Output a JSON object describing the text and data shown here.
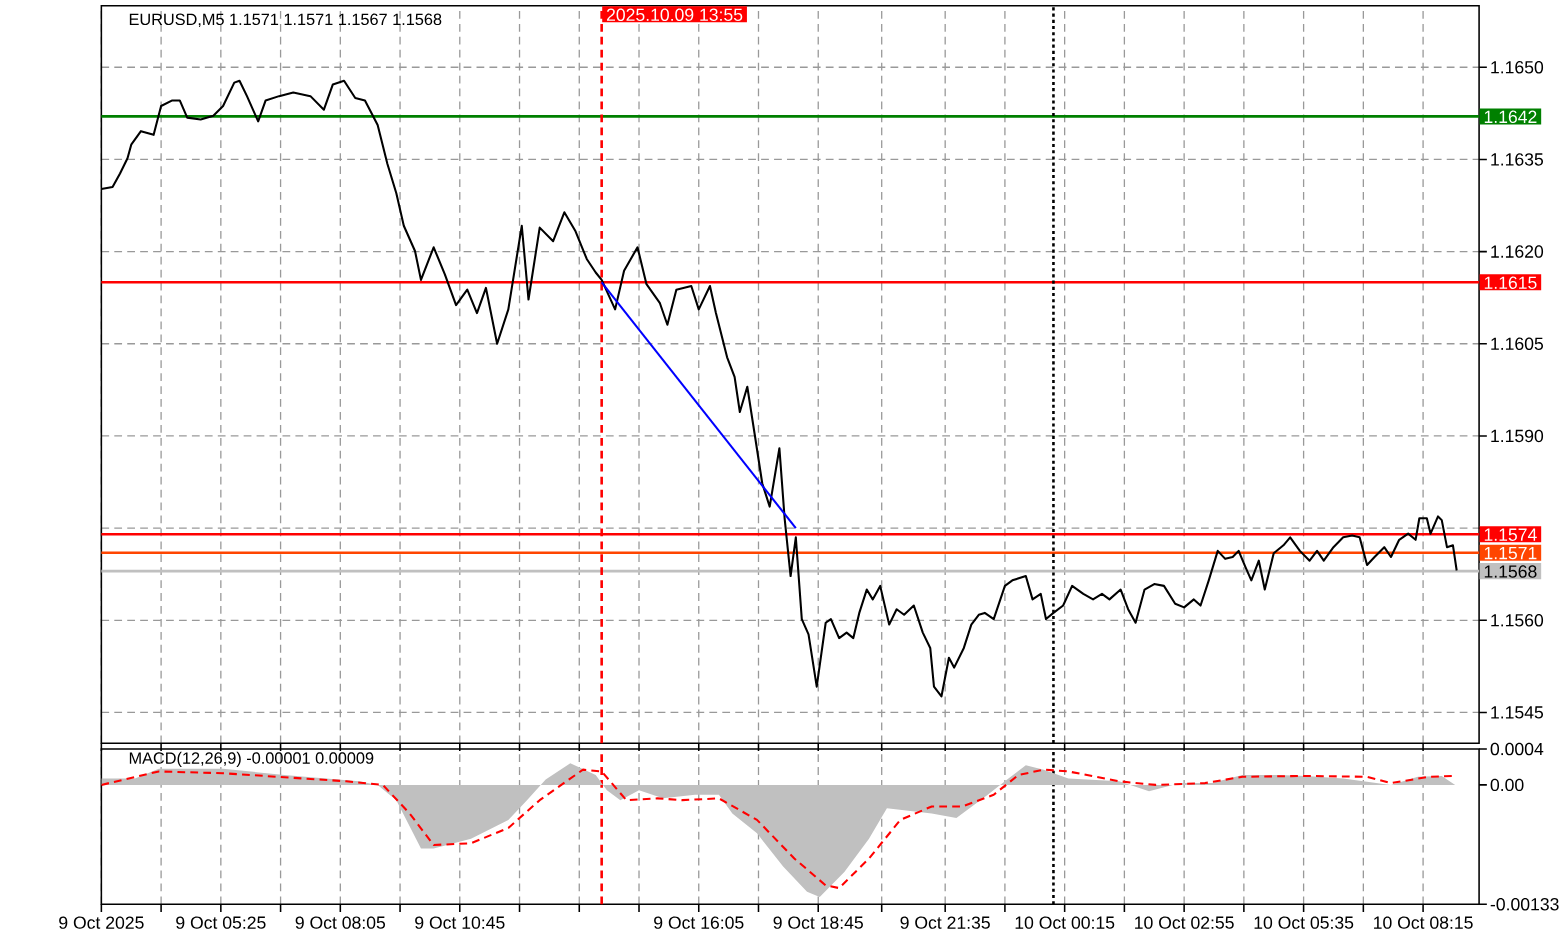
{
  "chart_data": [
    {
      "type": "line",
      "title": "EURUSD,M5 1.1571 1.1571 1.1567 1.1568",
      "xlim": [
        "2025-10-09T02:45",
        "2025-10-10T09:30"
      ],
      "ylim": [
        1.154,
        1.166
      ],
      "tick_labels": "y",
      "grid": true,
      "xticks": [
        {
          "value": "2025-10-09T02:45",
          "label": null
        },
        {
          "value": "2025-10-09T04:05",
          "label": null
        },
        {
          "value": "2025-10-09T05:25",
          "label": null
        },
        {
          "value": "2025-10-09T06:45",
          "label": null
        },
        {
          "value": "2025-10-09T08:05",
          "label": null
        },
        {
          "value": "2025-10-09T09:25",
          "label": null
        },
        {
          "value": "2025-10-09T10:45",
          "label": null
        },
        {
          "value": "2025-10-09T12:05",
          "label": null
        },
        {
          "value": "2025-10-09T13:25",
          "label": null
        },
        {
          "value": "2025-10-09T14:45",
          "label": null
        },
        {
          "value": "2025-10-09T16:05",
          "label": null
        },
        {
          "value": "2025-10-09T17:25",
          "label": null
        },
        {
          "value": "2025-10-09T18:45",
          "label": null
        },
        {
          "value": "2025-10-09T20:10",
          "label": null
        },
        {
          "value": "2025-10-09T21:35",
          "label": null
        },
        {
          "value": "2025-10-09T22:55",
          "label": null
        },
        {
          "value": "2025-10-10T00:15",
          "label": null
        },
        {
          "value": "2025-10-10T01:35",
          "label": null
        },
        {
          "value": "2025-10-10T02:55",
          "label": null
        },
        {
          "value": "2025-10-10T04:15",
          "label": null
        },
        {
          "value": "2025-10-10T05:35",
          "label": null
        },
        {
          "value": "2025-10-10T06:55",
          "label": null
        },
        {
          "value": "2025-10-10T08:15",
          "label": null
        }
      ],
      "yticks": [
        {
          "value": 1.1545,
          "label": "1.1545"
        },
        {
          "value": 1.156,
          "label": "1.1560"
        },
        {
          "value": 1.1575,
          "label": null
        },
        {
          "value": 1.159,
          "label": "1.1590"
        },
        {
          "value": 1.1605,
          "label": "1.1605"
        },
        {
          "value": 1.162,
          "label": "1.1620"
        },
        {
          "value": 1.1635,
          "label": "1.1635"
        },
        {
          "value": 1.165,
          "label": "1.1650"
        }
      ],
      "series": [
        {
          "color": "#000000",
          "x": [
            "2025-10-09T02:45",
            "2025-10-09T03:00",
            "2025-10-09T03:10",
            "2025-10-09T03:20",
            "2025-10-09T03:25",
            "2025-10-09T03:38",
            "2025-10-09T03:55",
            "2025-10-09T04:05",
            "2025-10-09T04:20",
            "2025-10-09T04:30",
            "2025-10-09T04:40",
            "2025-10-09T04:58",
            "2025-10-09T05:15",
            "2025-10-09T05:28",
            "2025-10-09T05:43",
            "2025-10-09T05:50",
            "2025-10-09T06:00",
            "2025-10-09T06:15",
            "2025-10-09T06:25",
            "2025-10-09T06:43",
            "2025-10-09T07:02",
            "2025-10-09T07:25",
            "2025-10-09T07:43",
            "2025-10-09T07:55",
            "2025-10-09T08:10",
            "2025-10-09T08:25",
            "2025-10-09T08:38",
            "2025-10-09T08:55",
            "2025-10-09T09:08",
            "2025-10-09T09:20",
            "2025-10-09T09:30",
            "2025-10-09T09:45",
            "2025-10-09T09:53",
            "2025-10-09T10:10",
            "2025-10-09T10:25",
            "2025-10-09T10:40",
            "2025-10-09T10:55",
            "2025-10-09T11:08",
            "2025-10-09T11:20",
            "2025-10-09T11:35",
            "2025-10-09T11:50",
            "2025-10-09T12:08",
            "2025-10-09T12:17",
            "2025-10-09T12:32",
            "2025-10-09T12:50",
            "2025-10-09T13:05",
            "2025-10-09T13:20",
            "2025-10-09T13:35",
            "2025-10-09T13:47",
            "2025-10-09T13:55",
            "2025-10-09T14:13",
            "2025-10-09T14:25",
            "2025-10-09T14:43",
            "2025-10-09T14:55",
            "2025-10-09T15:13",
            "2025-10-09T15:23",
            "2025-10-09T15:35",
            "2025-10-09T15:55",
            "2025-10-09T16:05",
            "2025-10-09T16:20",
            "2025-10-09T16:28",
            "2025-10-09T16:43",
            "2025-10-09T16:53",
            "2025-10-09T17:00",
            "2025-10-09T17:10",
            "2025-10-09T17:20",
            "2025-10-09T17:30",
            "2025-10-09T17:40",
            "2025-10-09T17:53",
            "2025-10-09T18:00",
            "2025-10-09T18:08",
            "2025-10-09T18:15",
            "2025-10-09T18:23",
            "2025-10-09T18:32",
            "2025-10-09T18:43",
            "2025-10-09T18:55",
            "2025-10-09T19:02",
            "2025-10-09T19:13",
            "2025-10-09T19:23",
            "2025-10-09T19:32",
            "2025-10-09T19:40",
            "2025-10-09T19:50",
            "2025-10-09T19:58",
            "2025-10-09T20:08",
            "2025-10-09T20:20",
            "2025-10-09T20:30",
            "2025-10-09T20:40",
            "2025-10-09T20:53",
            "2025-10-09T21:05",
            "2025-10-09T21:15",
            "2025-10-09T21:20",
            "2025-10-09T21:30",
            "2025-10-09T21:40",
            "2025-10-09T21:47",
            "2025-10-09T22:00",
            "2025-10-09T22:10",
            "2025-10-09T22:20",
            "2025-10-09T22:28",
            "2025-10-09T22:40",
            "2025-10-09T22:55",
            "2025-10-09T23:05",
            "2025-10-09T23:23",
            "2025-10-09T23:32",
            "2025-10-09T23:43",
            "2025-10-09T23:50",
            "2025-10-10T00:00",
            "2025-10-10T00:13",
            "2025-10-10T00:25",
            "2025-10-10T00:40",
            "2025-10-10T00:53",
            "2025-10-10T01:05",
            "2025-10-10T01:15",
            "2025-10-10T01:30",
            "2025-10-10T01:40",
            "2025-10-10T01:50",
            "2025-10-10T02:02",
            "2025-10-10T02:15",
            "2025-10-10T02:28",
            "2025-10-10T02:43",
            "2025-10-10T02:55",
            "2025-10-10T03:08",
            "2025-10-10T03:17",
            "2025-10-10T03:28",
            "2025-10-10T03:40",
            "2025-10-10T03:50",
            "2025-10-10T04:00",
            "2025-10-10T04:08",
            "2025-10-10T04:17",
            "2025-10-10T04:25",
            "2025-10-10T04:35",
            "2025-10-10T04:43",
            "2025-10-10T04:55",
            "2025-10-10T05:08",
            "2025-10-10T05:17",
            "2025-10-10T05:30",
            "2025-10-10T05:43",
            "2025-10-10T05:53",
            "2025-10-10T06:02",
            "2025-10-10T06:15",
            "2025-10-10T06:28",
            "2025-10-10T06:40",
            "2025-10-10T06:50",
            "2025-10-10T07:00",
            "2025-10-10T07:10",
            "2025-10-10T07:23",
            "2025-10-10T07:32",
            "2025-10-10T07:43",
            "2025-10-10T07:55",
            "2025-10-10T08:05",
            "2025-10-10T08:10",
            "2025-10-10T08:20",
            "2025-10-10T08:25",
            "2025-10-10T08:35",
            "2025-10-10T08:40",
            "2025-10-10T08:47",
            "2025-10-10T08:55",
            "2025-10-10T09:00"
          ],
          "values": [
            1.16302,
            1.16305,
            1.16327,
            1.16352,
            1.16374,
            1.16396,
            1.1639,
            1.16437,
            1.16446,
            1.16446,
            1.16418,
            1.16415,
            1.16421,
            1.16437,
            1.16475,
            1.16478,
            1.16453,
            1.16412,
            1.16446,
            1.16453,
            1.16459,
            1.16453,
            1.16431,
            1.16472,
            1.16478,
            1.1645,
            1.16446,
            1.16406,
            1.16343,
            1.16295,
            1.16242,
            1.16201,
            1.16154,
            1.16207,
            1.16163,
            1.16113,
            1.16138,
            1.161,
            1.16141,
            1.1605,
            1.16106,
            1.16242,
            1.16122,
            1.16239,
            1.16217,
            1.16264,
            1.16233,
            1.16188,
            1.16166,
            1.16154,
            1.16106,
            1.16169,
            1.16207,
            1.16147,
            1.16116,
            1.16081,
            1.16138,
            1.16144,
            1.16106,
            1.16144,
            1.161,
            1.16028,
            1.15996,
            1.15939,
            1.1598,
            1.15902,
            1.15823,
            1.15785,
            1.1588,
            1.15766,
            1.15672,
            1.15735,
            1.15602,
            1.15577,
            1.15492,
            1.15596,
            1.15602,
            1.15571,
            1.1558,
            1.15571,
            1.15612,
            1.1565,
            1.15634,
            1.15656,
            1.15593,
            1.15618,
            1.15609,
            1.15624,
            1.1558,
            1.15555,
            1.15492,
            1.15476,
            1.15539,
            1.15523,
            1.15555,
            1.15593,
            1.15609,
            1.15612,
            1.15602,
            1.15656,
            1.15665,
            1.15672,
            1.15634,
            1.15643,
            1.15602,
            1.15612,
            1.15624,
            1.15656,
            1.15643,
            1.15634,
            1.15643,
            1.15634,
            1.1565,
            1.15618,
            1.15596,
            1.1565,
            1.15659,
            1.15656,
            1.15627,
            1.15621,
            1.15634,
            1.15624,
            1.15665,
            1.15713,
            1.157,
            1.15703,
            1.15713,
            1.15687,
            1.15665,
            1.15697,
            1.1565,
            1.15709,
            1.15722,
            1.15735,
            1.15713,
            1.15697,
            1.15713,
            1.15697,
            1.15719,
            1.15735,
            1.15738,
            1.15735,
            1.1569,
            1.15703,
            1.15719,
            1.15703,
            1.15731,
            1.15741,
            1.15731,
            1.15766,
            1.15766,
            1.15741,
            1.15769,
            1.15763,
            1.15719,
            1.15722,
            1.15681
          ]
        },
        {
          "type": "line",
          "color": "#0000ff",
          "x": [
            "2025-10-09T13:55",
            "2025-10-09T18:15"
          ],
          "values": [
            1.1615,
            1.1575
          ]
        }
      ],
      "ref_lines": [
        {
          "axis": "y",
          "value": 1.1642,
          "label": "1.1642",
          "color": "#008000"
        },
        {
          "axis": "y",
          "value": 1.1615,
          "label": "1.1615",
          "color": "#ff0000"
        },
        {
          "axis": "y",
          "value": 1.1574,
          "label": "1.1574",
          "color": "#ff0000"
        },
        {
          "axis": "y",
          "value": 1.1571,
          "label": "1.1571",
          "color": "#ff4500"
        },
        {
          "axis": "y",
          "value": 1.1568,
          "label": "1.1568",
          "color": "#c0c0c0"
        },
        {
          "axis": "x",
          "value": "2025-10-09T13:55",
          "label": "2025.10.09 13:55",
          "color": "#ff0000",
          "line_style": "dashed"
        },
        {
          "axis": "x",
          "value": "2025-10-10T00:00",
          "color": "#000000",
          "line_style": "dotted"
        }
      ]
    },
    {
      "type": "area",
      "title": "MACD(12,26,9) -0.00001 0.00009",
      "xlim": [
        "2025-10-09T02:45",
        "2025-10-10T09:30"
      ],
      "ylim": [
        -0.00133,
        0.0004
      ],
      "grid": "x",
      "xticks": [
        {
          "value": "2025-10-09T02:45",
          "label": "9 Oct 2025"
        },
        {
          "value": "2025-10-09T04:05",
          "label": null
        },
        {
          "value": "2025-10-09T05:25",
          "label": "9 Oct 05:25"
        },
        {
          "value": "2025-10-09T06:45",
          "label": null
        },
        {
          "value": "2025-10-09T08:05",
          "label": "9 Oct 08:05"
        },
        {
          "value": "2025-10-09T09:25",
          "label": null
        },
        {
          "value": "2025-10-09T10:45",
          "label": "9 Oct 10:45"
        },
        {
          "value": "2025-10-09T12:05",
          "label": null
        },
        {
          "value": "2025-10-09T13:25",
          "label": null
        },
        {
          "value": "2025-10-09T14:45",
          "label": null
        },
        {
          "value": "2025-10-09T16:05",
          "label": "9 Oct 16:05"
        },
        {
          "value": "2025-10-09T17:25",
          "label": null
        },
        {
          "value": "2025-10-09T18:45",
          "label": "9 Oct 18:45"
        },
        {
          "value": "2025-10-09T20:10",
          "label": null
        },
        {
          "value": "2025-10-09T21:35",
          "label": "9 Oct 21:35"
        },
        {
          "value": "2025-10-09T22:55",
          "label": null
        },
        {
          "value": "2025-10-10T00:15",
          "label": "10 Oct 00:15"
        },
        {
          "value": "2025-10-10T01:35",
          "label": null
        },
        {
          "value": "2025-10-10T02:55",
          "label": "10 Oct 02:55"
        },
        {
          "value": "2025-10-10T04:15",
          "label": null
        },
        {
          "value": "2025-10-10T05:35",
          "label": "10 Oct 05:35"
        },
        {
          "value": "2025-10-10T06:55",
          "label": null
        },
        {
          "value": "2025-10-10T08:15",
          "label": "10 Oct 08:15"
        }
      ],
      "yticks": [
        {
          "value": -0.00133,
          "label": "-0.00133"
        },
        {
          "value": 0,
          "label": "0.00"
        },
        {
          "value": 0.0004,
          "label": "0.0004"
        }
      ],
      "series": [
        {
          "color": "#c0c0c0",
          "x": [
            "2025-10-09T02:45",
            "2025-10-09T03:30",
            "2025-10-09T04:02",
            "2025-10-09T05:28",
            "2025-10-09T06:50",
            "2025-10-09T08:30",
            "2025-10-09T08:55",
            "2025-10-09T09:20",
            "2025-10-09T09:53",
            "2025-10-09T10:10",
            "2025-10-09T11:00",
            "2025-10-09T11:50",
            "2025-10-09T12:15",
            "2025-10-09T12:40",
            "2025-10-09T13:13",
            "2025-10-09T13:47",
            "2025-10-09T14:02",
            "2025-10-09T14:20",
            "2025-10-09T14:45",
            "2025-10-09T15:17",
            "2025-10-09T16:00",
            "2025-10-09T16:32",
            "2025-10-09T16:50",
            "2025-10-09T17:23",
            "2025-10-09T17:58",
            "2025-10-09T18:30",
            "2025-10-09T18:47",
            "2025-10-09T19:20",
            "2025-10-09T19:53",
            "2025-10-09T20:17",
            "2025-10-09T21:17",
            "2025-10-09T21:50",
            "2025-10-09T22:32",
            "2025-10-09T22:58",
            "2025-10-09T23:23",
            "2025-10-09T23:47",
            "2025-10-10T00:20",
            "2025-10-10T01:28",
            "2025-10-10T02:08",
            "2025-10-10T02:50",
            "2025-10-10T03:32",
            "2025-10-10T04:13",
            "2025-10-10T05:02",
            "2025-10-10T05:38",
            "2025-10-10T06:28",
            "2025-10-10T07:32",
            "2025-10-10T08:08",
            "2025-10-10T08:40",
            "2025-10-10T08:58"
          ],
          "values": [
            7e-05,
            7e-05,
            0.00018,
            0.00018,
            0.00011,
            4e-05,
            0,
            -0.00017,
            -0.00071,
            -0.00071,
            -0.0006,
            -0.00039,
            -0.00017,
            6e-05,
            0.00024,
            0.00011,
            -6e-05,
            -0.00017,
            -6e-05,
            -0.00015,
            -0.00011,
            -0.00011,
            -0.00032,
            -0.00054,
            -0.00091,
            -0.00119,
            -0.00125,
            -0.00097,
            -0.0006,
            -0.00026,
            -0.00032,
            -0.00037,
            -0.00011,
            6e-05,
            0.00022,
            0.00017,
            7e-05,
            4e-05,
            -7e-05,
            2e-05,
            2e-05,
            0.00011,
            0.00011,
            0.0001,
            7e-05,
            0,
            9e-05,
            0.0001,
            0
          ]
        },
        {
          "type": "line",
          "color": "#ff0000",
          "line_style": "dashed",
          "x": [
            "2025-10-09T02:45",
            "2025-10-09T04:02",
            "2025-10-09T05:28",
            "2025-10-09T08:13",
            "2025-10-09T09:02",
            "2025-10-09T09:38",
            "2025-10-09T10:10",
            "2025-10-09T11:00",
            "2025-10-09T11:50",
            "2025-10-09T12:32",
            "2025-10-09T13:30",
            "2025-10-09T13:55",
            "2025-10-09T14:28",
            "2025-10-09T15:10",
            "2025-10-09T15:43",
            "2025-10-09T16:32",
            "2025-10-09T17:23",
            "2025-10-09T18:13",
            "2025-10-09T18:55",
            "2025-10-09T19:13",
            "2025-10-09T19:53",
            "2025-10-09T20:35",
            "2025-10-09T21:17",
            "2025-10-09T21:58",
            "2025-10-09T22:40",
            "2025-10-09T23:13",
            "2025-10-09T23:47",
            "2025-10-10T00:20",
            "2025-10-10T01:28",
            "2025-10-10T02:17",
            "2025-10-10T03:23",
            "2025-10-10T04:13",
            "2025-10-10T05:38",
            "2025-10-10T07:00",
            "2025-10-10T07:32",
            "2025-10-10T08:23",
            "2025-10-10T08:58"
          ],
          "values": [
            0,
            0.00015,
            0.00013,
            4e-05,
            0,
            -0.00032,
            -0.00067,
            -0.00065,
            -0.00048,
            -0.00017,
            0.00017,
            0.00015,
            -0.00017,
            -0.00015,
            -0.00017,
            -0.00015,
            -0.00039,
            -0.00082,
            -0.00112,
            -0.00115,
            -0.00082,
            -0.00039,
            -0.00024,
            -0.00024,
            -0.00011,
            0.00011,
            0.00017,
            0.00015,
            4e-05,
            0,
            2e-05,
            9e-05,
            0.0001,
            9e-05,
            2e-05,
            9e-05,
            0.0001
          ]
        }
      ],
      "ref_lines": [
        {
          "axis": "x",
          "value": "2025-10-09T13:55",
          "color": "#ff0000",
          "line_style": "dashed"
        },
        {
          "axis": "x",
          "value": "2025-10-10T00:00",
          "color": "#000000",
          "line_style": "dotted"
        }
      ]
    }
  ]
}
